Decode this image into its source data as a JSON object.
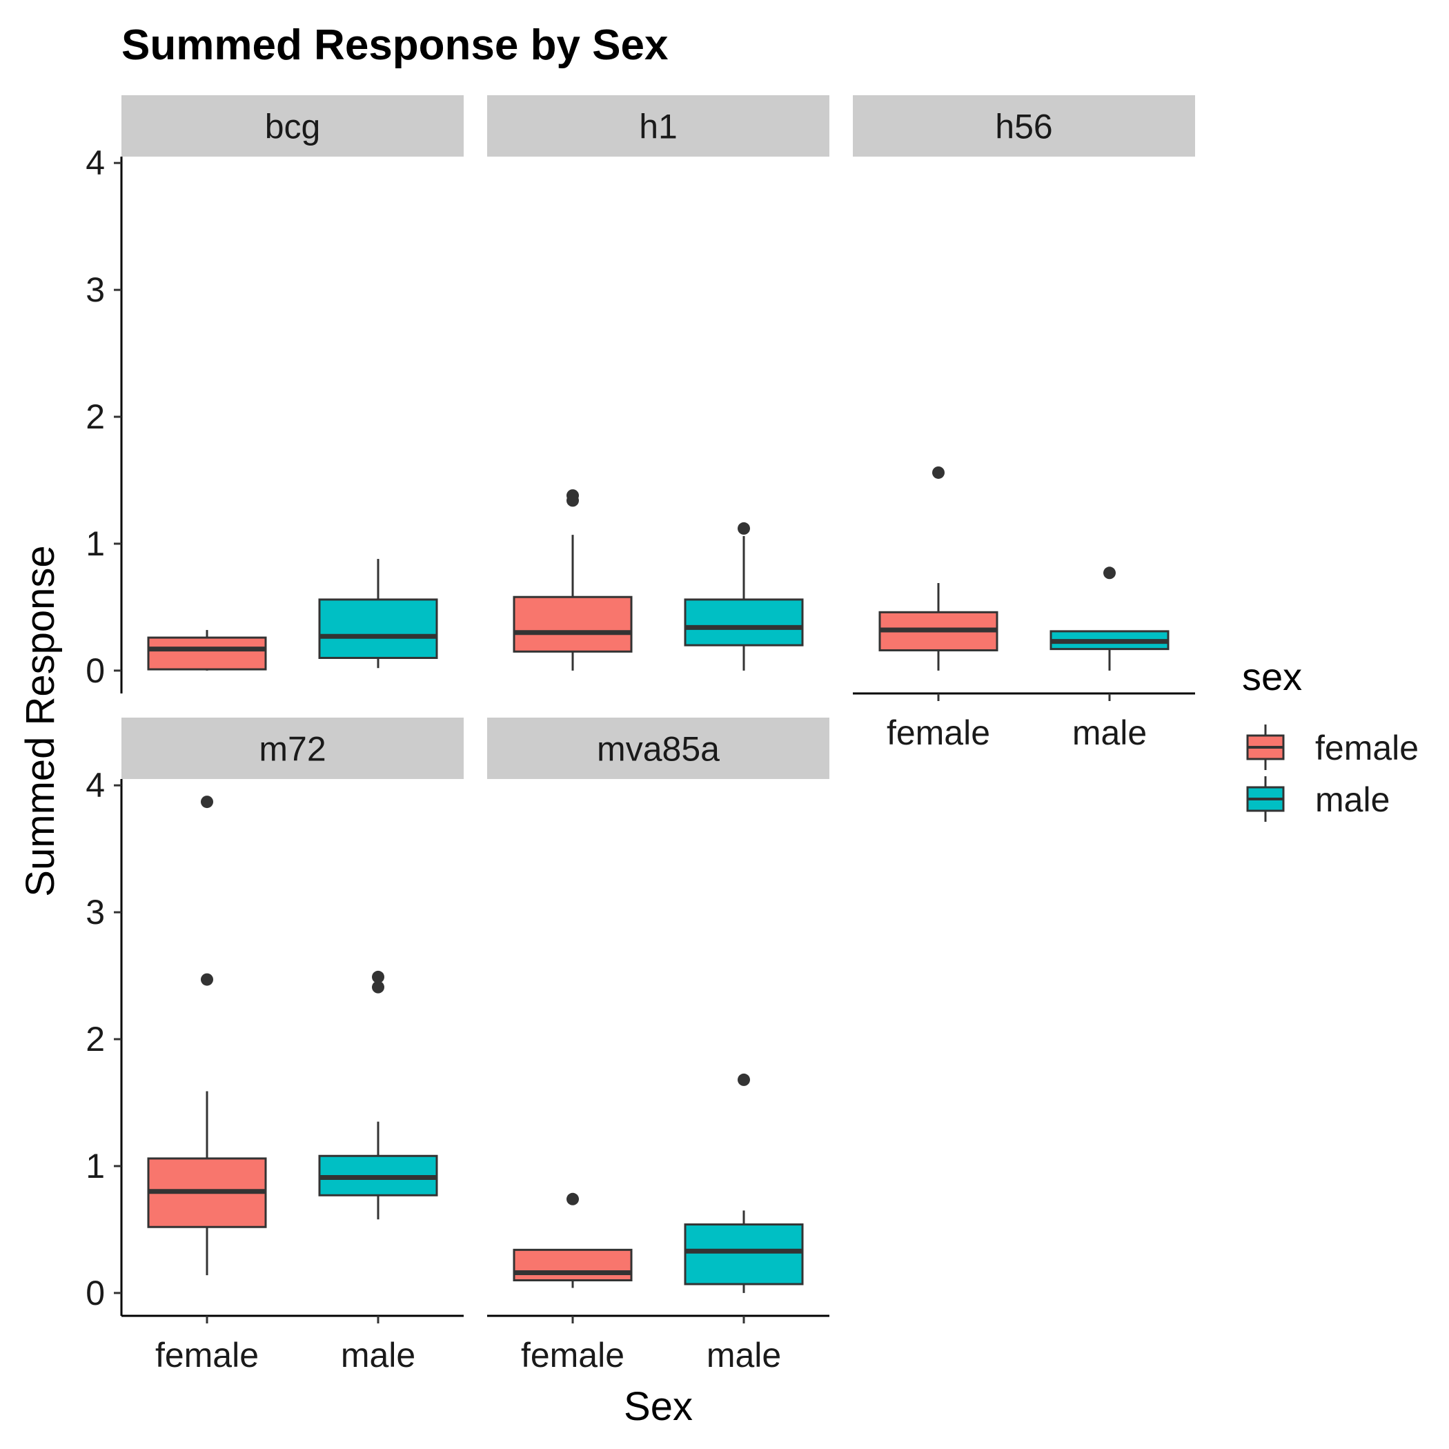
{
  "chart_data": {
    "type": "boxplot",
    "title": "Summed Response by Sex",
    "xlabel": "Sex",
    "ylabel": "Summed Response",
    "ylim": [
      -0.18,
      4.05
    ],
    "yticks": [
      0,
      1,
      2,
      3,
      4
    ],
    "categories": [
      "female",
      "male"
    ],
    "legend": {
      "title": "sex",
      "placement": "right",
      "entries": [
        {
          "label": "female",
          "color": "#F8766D"
        },
        {
          "label": "male",
          "color": "#00BFC4"
        }
      ]
    },
    "colors": {
      "female": "#F8766D",
      "male": "#00BFC4",
      "line": "#333333",
      "strip": "#CCCCCC"
    },
    "grid": false,
    "panels": [
      {
        "name": "bcg",
        "boxes": [
          {
            "sex": "female",
            "lower_whisker": 0.0,
            "q1": 0.01,
            "median": 0.17,
            "q3": 0.26,
            "upper_whisker": 0.32,
            "outliers": []
          },
          {
            "sex": "male",
            "lower_whisker": 0.02,
            "q1": 0.1,
            "median": 0.27,
            "q3": 0.56,
            "upper_whisker": 0.88,
            "outliers": []
          }
        ]
      },
      {
        "name": "h1",
        "boxes": [
          {
            "sex": "female",
            "lower_whisker": 0.0,
            "q1": 0.15,
            "median": 0.3,
            "q3": 0.58,
            "upper_whisker": 1.07,
            "outliers": [
              1.34,
              1.38
            ]
          },
          {
            "sex": "male",
            "lower_whisker": 0.0,
            "q1": 0.2,
            "median": 0.34,
            "q3": 0.56,
            "upper_whisker": 1.06,
            "outliers": [
              1.12
            ]
          }
        ]
      },
      {
        "name": "h56",
        "boxes": [
          {
            "sex": "female",
            "lower_whisker": 0.0,
            "q1": 0.16,
            "median": 0.32,
            "q3": 0.46,
            "upper_whisker": 0.69,
            "outliers": [
              1.56
            ]
          },
          {
            "sex": "male",
            "lower_whisker": 0.0,
            "q1": 0.17,
            "median": 0.23,
            "q3": 0.31,
            "upper_whisker": 0.31,
            "outliers": [
              0.77
            ]
          }
        ]
      },
      {
        "name": "m72",
        "boxes": [
          {
            "sex": "female",
            "lower_whisker": 0.14,
            "q1": 0.52,
            "median": 0.8,
            "q3": 1.06,
            "upper_whisker": 1.59,
            "outliers": [
              2.47,
              3.87
            ]
          },
          {
            "sex": "male",
            "lower_whisker": 0.58,
            "q1": 0.77,
            "median": 0.91,
            "q3": 1.08,
            "upper_whisker": 1.35,
            "outliers": [
              2.41,
              2.49
            ]
          }
        ]
      },
      {
        "name": "mva85a",
        "boxes": [
          {
            "sex": "female",
            "lower_whisker": 0.04,
            "q1": 0.1,
            "median": 0.16,
            "q3": 0.34,
            "upper_whisker": 0.34,
            "outliers": [
              0.74
            ]
          },
          {
            "sex": "male",
            "lower_whisker": 0.0,
            "q1": 0.07,
            "median": 0.33,
            "q3": 0.54,
            "upper_whisker": 0.65,
            "outliers": [
              1.68
            ]
          }
        ]
      }
    ]
  }
}
